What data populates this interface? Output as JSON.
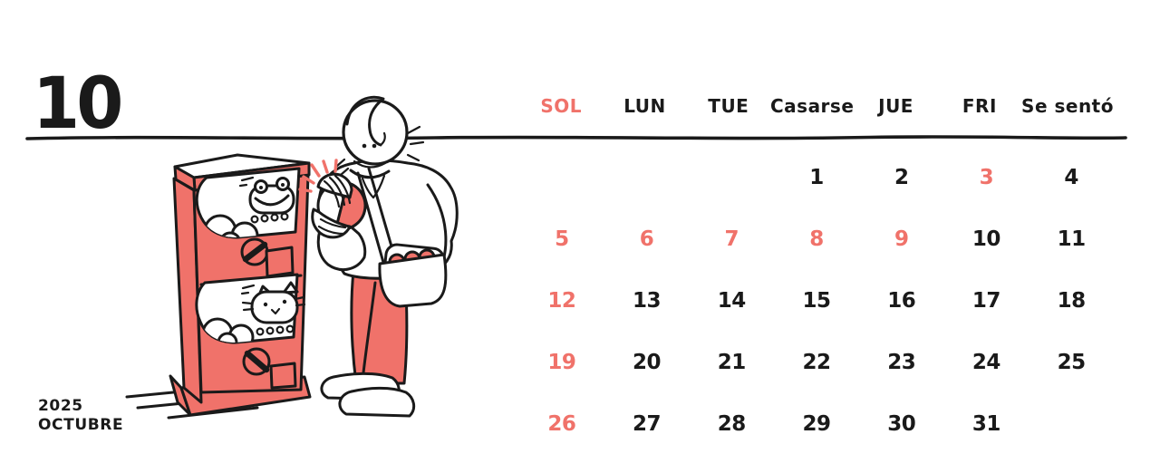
{
  "header": {
    "month_number": "10",
    "weekdays": [
      {
        "label": "SOL",
        "highlight": true
      },
      {
        "label": "LUN",
        "highlight": false
      },
      {
        "label": "TUE",
        "highlight": false
      },
      {
        "label": "Casarse",
        "highlight": false
      },
      {
        "label": "JUE",
        "highlight": false
      },
      {
        "label": "FRI",
        "highlight": false
      },
      {
        "label": "Se sentó",
        "highlight": false
      }
    ]
  },
  "calendar": {
    "cells": [
      {
        "label": "",
        "highlight": false
      },
      {
        "label": "",
        "highlight": false
      },
      {
        "label": "",
        "highlight": false
      },
      {
        "label": "1",
        "highlight": false
      },
      {
        "label": "2",
        "highlight": false
      },
      {
        "label": "3",
        "highlight": true
      },
      {
        "label": "4",
        "highlight": false
      },
      {
        "label": "5",
        "highlight": true
      },
      {
        "label": "6",
        "highlight": true
      },
      {
        "label": "7",
        "highlight": true
      },
      {
        "label": "8",
        "highlight": true
      },
      {
        "label": "9",
        "highlight": true
      },
      {
        "label": "10",
        "highlight": false
      },
      {
        "label": "11",
        "highlight": false
      },
      {
        "label": "12",
        "highlight": true
      },
      {
        "label": "13",
        "highlight": false
      },
      {
        "label": "14",
        "highlight": false
      },
      {
        "label": "15",
        "highlight": false
      },
      {
        "label": "16",
        "highlight": false
      },
      {
        "label": "17",
        "highlight": false
      },
      {
        "label": "18",
        "highlight": false
      },
      {
        "label": "19",
        "highlight": true
      },
      {
        "label": "20",
        "highlight": false
      },
      {
        "label": "21",
        "highlight": false
      },
      {
        "label": "22",
        "highlight": false
      },
      {
        "label": "23",
        "highlight": false
      },
      {
        "label": "24",
        "highlight": false
      },
      {
        "label": "25",
        "highlight": false
      },
      {
        "label": "26",
        "highlight": true
      },
      {
        "label": "27",
        "highlight": false
      },
      {
        "label": "28",
        "highlight": false
      },
      {
        "label": "29",
        "highlight": false
      },
      {
        "label": "30",
        "highlight": false
      },
      {
        "label": "31",
        "highlight": false
      },
      {
        "label": "",
        "highlight": false
      }
    ]
  },
  "footer": {
    "year": "2025",
    "month_name": "OCTUBRE"
  },
  "colors": {
    "accent": "#F0726A",
    "ink": "#1A1A1A",
    "background": "#FFFFFF"
  },
  "illustration": {
    "machine": "gashapon-capsule-machine",
    "top_panel_character": "frog-face",
    "bottom_panel_character": "cat-face",
    "person": "person-holding-capsule",
    "bag": "shoulder-bag-with-capsules"
  }
}
